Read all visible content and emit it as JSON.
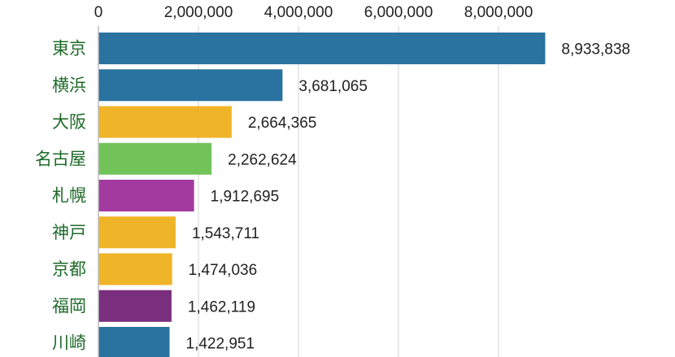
{
  "chart_data": {
    "type": "bar",
    "orientation": "horizontal",
    "categories": [
      "東京",
      "横浜",
      "大阪",
      "名古屋",
      "札幌",
      "神戸",
      "京都",
      "福岡",
      "川崎"
    ],
    "values": [
      8933838,
      3681065,
      2664365,
      2262624,
      1912695,
      1543711,
      1474036,
      1462119,
      1422951
    ],
    "value_labels": [
      "8,933,838",
      "3,681,065",
      "2,664,365",
      "2,262,624",
      "1,912,695",
      "1,543,711",
      "1,474,036",
      "1,462,119",
      "1,422,951"
    ],
    "colors": [
      "#2a72a0",
      "#2a72a0",
      "#f0b428",
      "#72c25a",
      "#a33aa0",
      "#f0b428",
      "#f0b428",
      "#7a2f7e",
      "#2a72a0"
    ],
    "xticks": [
      0,
      2000000,
      4000000,
      6000000,
      8000000
    ],
    "xtick_labels": [
      "0",
      "2,000,000",
      "4,000,000",
      "6,000,000",
      "8,000,000"
    ],
    "xlim": [
      0,
      9000000
    ],
    "axis_position": "top",
    "grid": true,
    "title": "",
    "xlabel": "",
    "ylabel": ""
  }
}
